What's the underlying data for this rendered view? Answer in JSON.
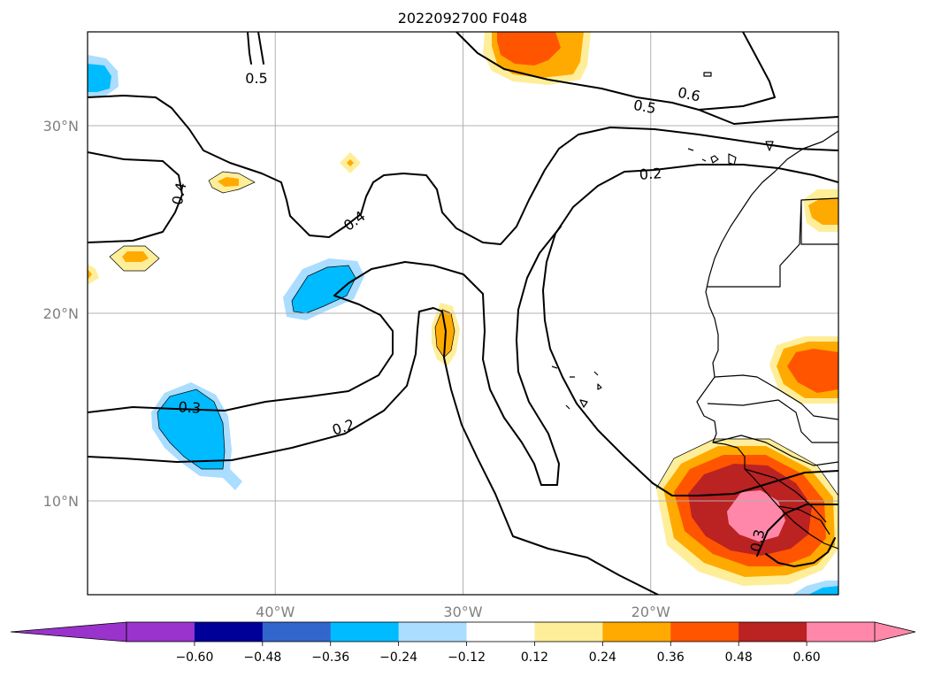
{
  "title": "2022092700 F048",
  "map": {
    "lon_range": [
      -50,
      -10
    ],
    "lat_range": [
      5,
      35
    ],
    "lat_ticks": [
      {
        "value": 30,
        "label": "30°N"
      },
      {
        "value": 20,
        "label": "20°N"
      },
      {
        "value": 10,
        "label": "10°N"
      }
    ],
    "lon_ticks": [
      {
        "value": -40,
        "label": "40°W"
      },
      {
        "value": -30,
        "label": "30°W"
      },
      {
        "value": -20,
        "label": "20°W"
      }
    ],
    "grid": true
  },
  "contour_labels": [
    {
      "text": "0.5"
    },
    {
      "text": "0.6"
    },
    {
      "text": "0.5"
    },
    {
      "text": "0.4"
    },
    {
      "text": "0.4"
    },
    {
      "text": "0.2"
    },
    {
      "text": "0.3"
    },
    {
      "text": "0.2"
    },
    {
      "text": "0.3"
    }
  ],
  "colorbar": {
    "colors": [
      "#9933cc",
      "#000099",
      "#3366cc",
      "#00bbff",
      "#aaddff",
      "#ffffff",
      "#ffee99",
      "#ffaa00",
      "#ff5500",
      "#bb2222",
      "#ff88aa"
    ],
    "under_color": "#9933cc",
    "over_color": "#ff88aa",
    "ticks": [
      "−0.60",
      "−0.48",
      "−0.36",
      "−0.24",
      "−0.12",
      "0.12",
      "0.24",
      "0.36",
      "0.48",
      "0.60"
    ]
  },
  "fill_colors": {
    "light_blue": "#aaddff",
    "blue": "#00bbff",
    "yellow": "#ffee99",
    "orange": "#ffaa00",
    "red_orange": "#ff5500",
    "dark_red": "#bb2222",
    "pink": "#ff88aa"
  }
}
